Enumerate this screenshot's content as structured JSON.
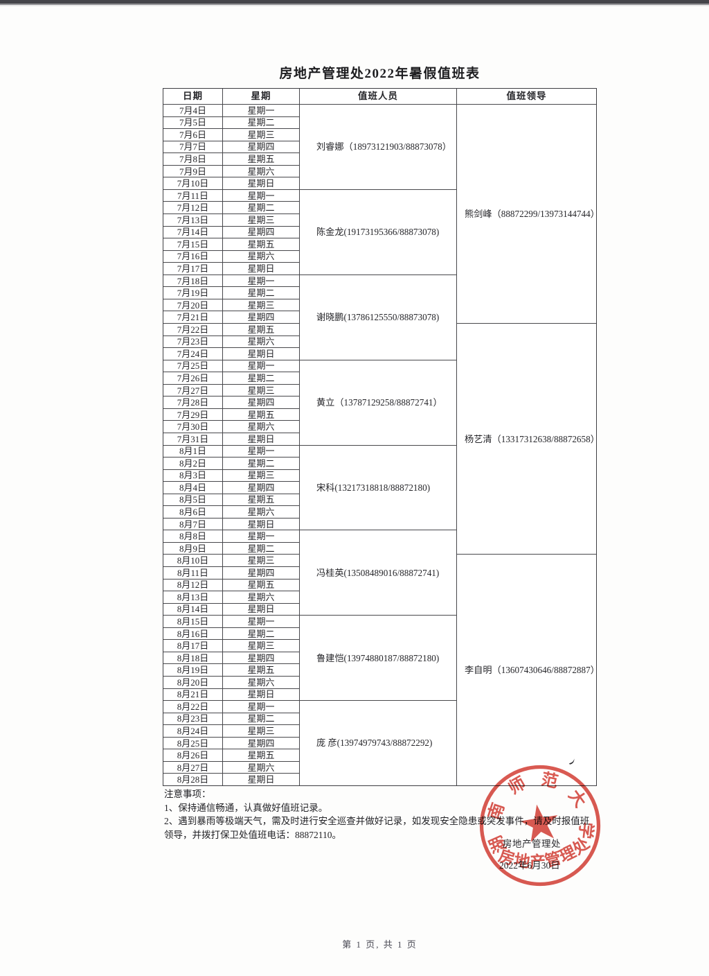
{
  "page": {
    "title": "房地产管理处2022年暑假值班表",
    "footer": "第 1 页, 共 1 页"
  },
  "table": {
    "headers": [
      "日期",
      "星期",
      "值班人员",
      "值班领导"
    ],
    "rows": [
      [
        "7月4日",
        "星期一"
      ],
      [
        "7月5日",
        "星期二"
      ],
      [
        "7月6日",
        "星期三"
      ],
      [
        "7月7日",
        "星期四"
      ],
      [
        "7月8日",
        "星期五"
      ],
      [
        "7月9日",
        "星期六"
      ],
      [
        "7月10日",
        "星期日"
      ],
      [
        "7月11日",
        "星期一"
      ],
      [
        "7月12日",
        "星期二"
      ],
      [
        "7月13日",
        "星期三"
      ],
      [
        "7月14日",
        "星期四"
      ],
      [
        "7月15日",
        "星期五"
      ],
      [
        "7月16日",
        "星期六"
      ],
      [
        "7月17日",
        "星期日"
      ],
      [
        "7月18日",
        "星期一"
      ],
      [
        "7月19日",
        "星期二"
      ],
      [
        "7月20日",
        "星期三"
      ],
      [
        "7月21日",
        "星期四"
      ],
      [
        "7月22日",
        "星期五"
      ],
      [
        "7月23日",
        "星期六"
      ],
      [
        "7月24日",
        "星期日"
      ],
      [
        "7月25日",
        "星期一"
      ],
      [
        "7月26日",
        "星期二"
      ],
      [
        "7月27日",
        "星期三"
      ],
      [
        "7月28日",
        "星期四"
      ],
      [
        "7月29日",
        "星期五"
      ],
      [
        "7月30日",
        "星期六"
      ],
      [
        "7月31日",
        "星期日"
      ],
      [
        "8月1日",
        "星期一"
      ],
      [
        "8月2日",
        "星期二"
      ],
      [
        "8月3日",
        "星期三"
      ],
      [
        "8月4日",
        "星期四"
      ],
      [
        "8月5日",
        "星期五"
      ],
      [
        "8月6日",
        "星期六"
      ],
      [
        "8月7日",
        "星期日"
      ],
      [
        "8月8日",
        "星期一"
      ],
      [
        "8月9日",
        "星期二"
      ],
      [
        "8月10日",
        "星期三"
      ],
      [
        "8月11日",
        "星期四"
      ],
      [
        "8月12日",
        "星期五"
      ],
      [
        "8月13日",
        "星期六"
      ],
      [
        "8月14日",
        "星期日"
      ],
      [
        "8月15日",
        "星期一"
      ],
      [
        "8月16日",
        "星期二"
      ],
      [
        "8月17日",
        "星期三"
      ],
      [
        "8月18日",
        "星期四"
      ],
      [
        "8月19日",
        "星期五"
      ],
      [
        "8月20日",
        "星期六"
      ],
      [
        "8月21日",
        "星期日"
      ],
      [
        "8月22日",
        "星期一"
      ],
      [
        "8月23日",
        "星期二"
      ],
      [
        "8月24日",
        "星期三"
      ],
      [
        "8月25日",
        "星期四"
      ],
      [
        "8月26日",
        "星期五"
      ],
      [
        "8月27日",
        "星期六"
      ],
      [
        "8月28日",
        "星期日"
      ]
    ],
    "personnel": [
      {
        "name": "刘睿娜（18973121903/88873078）",
        "span": 7
      },
      {
        "name": "陈金龙(19173195366/88873078)",
        "span": 7
      },
      {
        "name": "谢晓鹏(13786125550/88873078)",
        "span": 7
      },
      {
        "name": "黄立（13787129258/88872741）",
        "span": 7
      },
      {
        "name": "宋科(13217318818/88872180)",
        "span": 7
      },
      {
        "name": "冯桂英(13508489016/88872741)",
        "span": 7
      },
      {
        "name": "鲁建恺(13974880187/88872180)",
        "span": 7
      },
      {
        "name": "庞 彦(13974979743/88872292)",
        "span": 7
      }
    ],
    "leaders": [
      {
        "name": "熊剑峰（88872299/13973144744）",
        "span": 18
      },
      {
        "name": "杨艺清（13317312638/88872658）",
        "span": 19
      },
      {
        "name": "李自明（13607430646/88872887）",
        "span": 19
      }
    ]
  },
  "notes": {
    "heading": "注意事项：",
    "items": [
      "1、保持通信畅通，认真做好值班记录。",
      "2、遇到暴雨等极端天气，需及时进行安全巡查并做好记录，如发现安全隐患或突发事件，请及时报值班领导，并拨打保卫处值班电话：88872110。"
    ]
  },
  "signature": {
    "org": "房地产管理处",
    "date": "2022年6月30日"
  },
  "stamp": {
    "arc_text": "湖南师范大学",
    "banner_text": "房地产管理处",
    "color": "#d23a30"
  }
}
